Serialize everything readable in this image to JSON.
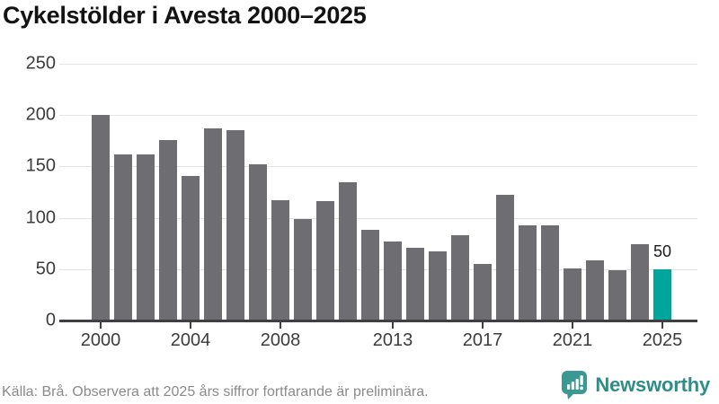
{
  "title": "Cykelstölder i Avesta 2000–2025",
  "footer": {
    "source_note": "Källa: Brå. Observera att 2025 års siffror fortfarande är preliminära."
  },
  "branding": {
    "logo_text": "Newsworthy",
    "logo_icon": "newsworthy-speech-bubble-bar-chart-icon"
  },
  "colors": {
    "bar_default": "#6d6d72",
    "bar_highlight": "#00a69b",
    "gridline": "#e4e4e4",
    "axis_line": "#3f3f44",
    "title_text": "#131313",
    "axis_label_text": "#3c3c3c",
    "footer_text": "#8a8a8a",
    "logo_icon_fill": "#3a9a93",
    "logo_text_color": "#2f8d88",
    "value_label_text": "#1a1a1a"
  },
  "chart_data": {
    "type": "bar",
    "title": "Cykelstölder i Avesta 2000–2025",
    "categories": [
      2000,
      2001,
      2002,
      2003,
      2004,
      2005,
      2006,
      2007,
      2008,
      2009,
      2010,
      2011,
      2012,
      2013,
      2014,
      2015,
      2016,
      2017,
      2018,
      2019,
      2020,
      2021,
      2022,
      2023,
      2024,
      2025
    ],
    "values": [
      200,
      162,
      162,
      176,
      141,
      187,
      185,
      152,
      117,
      99,
      116,
      135,
      88,
      77,
      71,
      67,
      83,
      55,
      122,
      93,
      93,
      51,
      59,
      49,
      74,
      50
    ],
    "highlighted_category": 2025,
    "highlight_value_label": "50",
    "xlabel": "",
    "ylabel": "",
    "ylim": [
      0,
      250
    ],
    "yticks": [
      0,
      50,
      100,
      150,
      200,
      250
    ],
    "xticks": [
      2000,
      2004,
      2008,
      2013,
      2017,
      2021,
      2025
    ],
    "grid": "horizontal",
    "legend": "none"
  }
}
